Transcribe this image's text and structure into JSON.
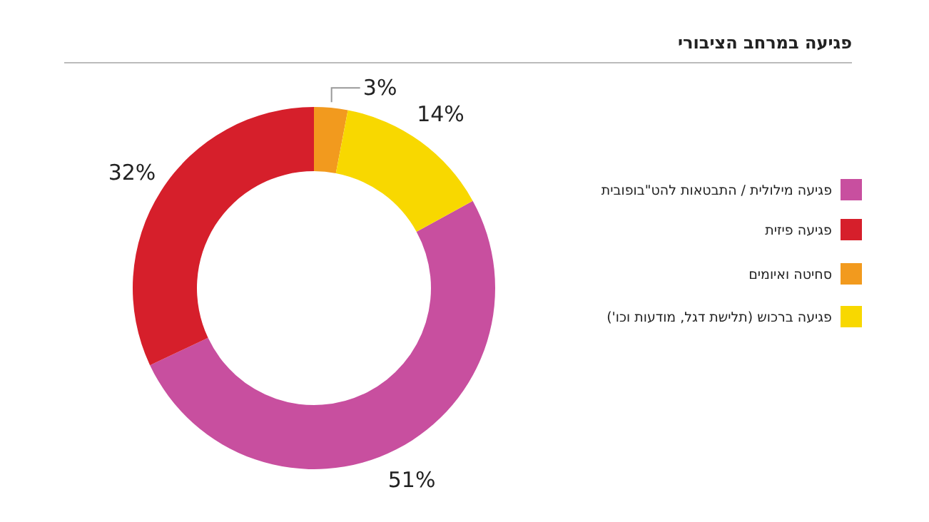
{
  "chart_data": {
    "type": "donut",
    "title": "פגיעה במרחב הציבורי",
    "categories": [
      "פגיעה מילולית / התבטאות להט\"בופובית",
      "פגיעה פיזית",
      "סחיטה ואיומים",
      "פגיעה ברכוש (תלישת דגל, מודעות וכו')"
    ],
    "values": [
      51,
      32,
      3,
      14
    ],
    "value_labels": [
      "51%",
      "32%",
      "3%",
      "14%"
    ],
    "colors": [
      "#c84f9f",
      "#d61f2b",
      "#f29a1e",
      "#f8d800"
    ],
    "legend": "right"
  }
}
